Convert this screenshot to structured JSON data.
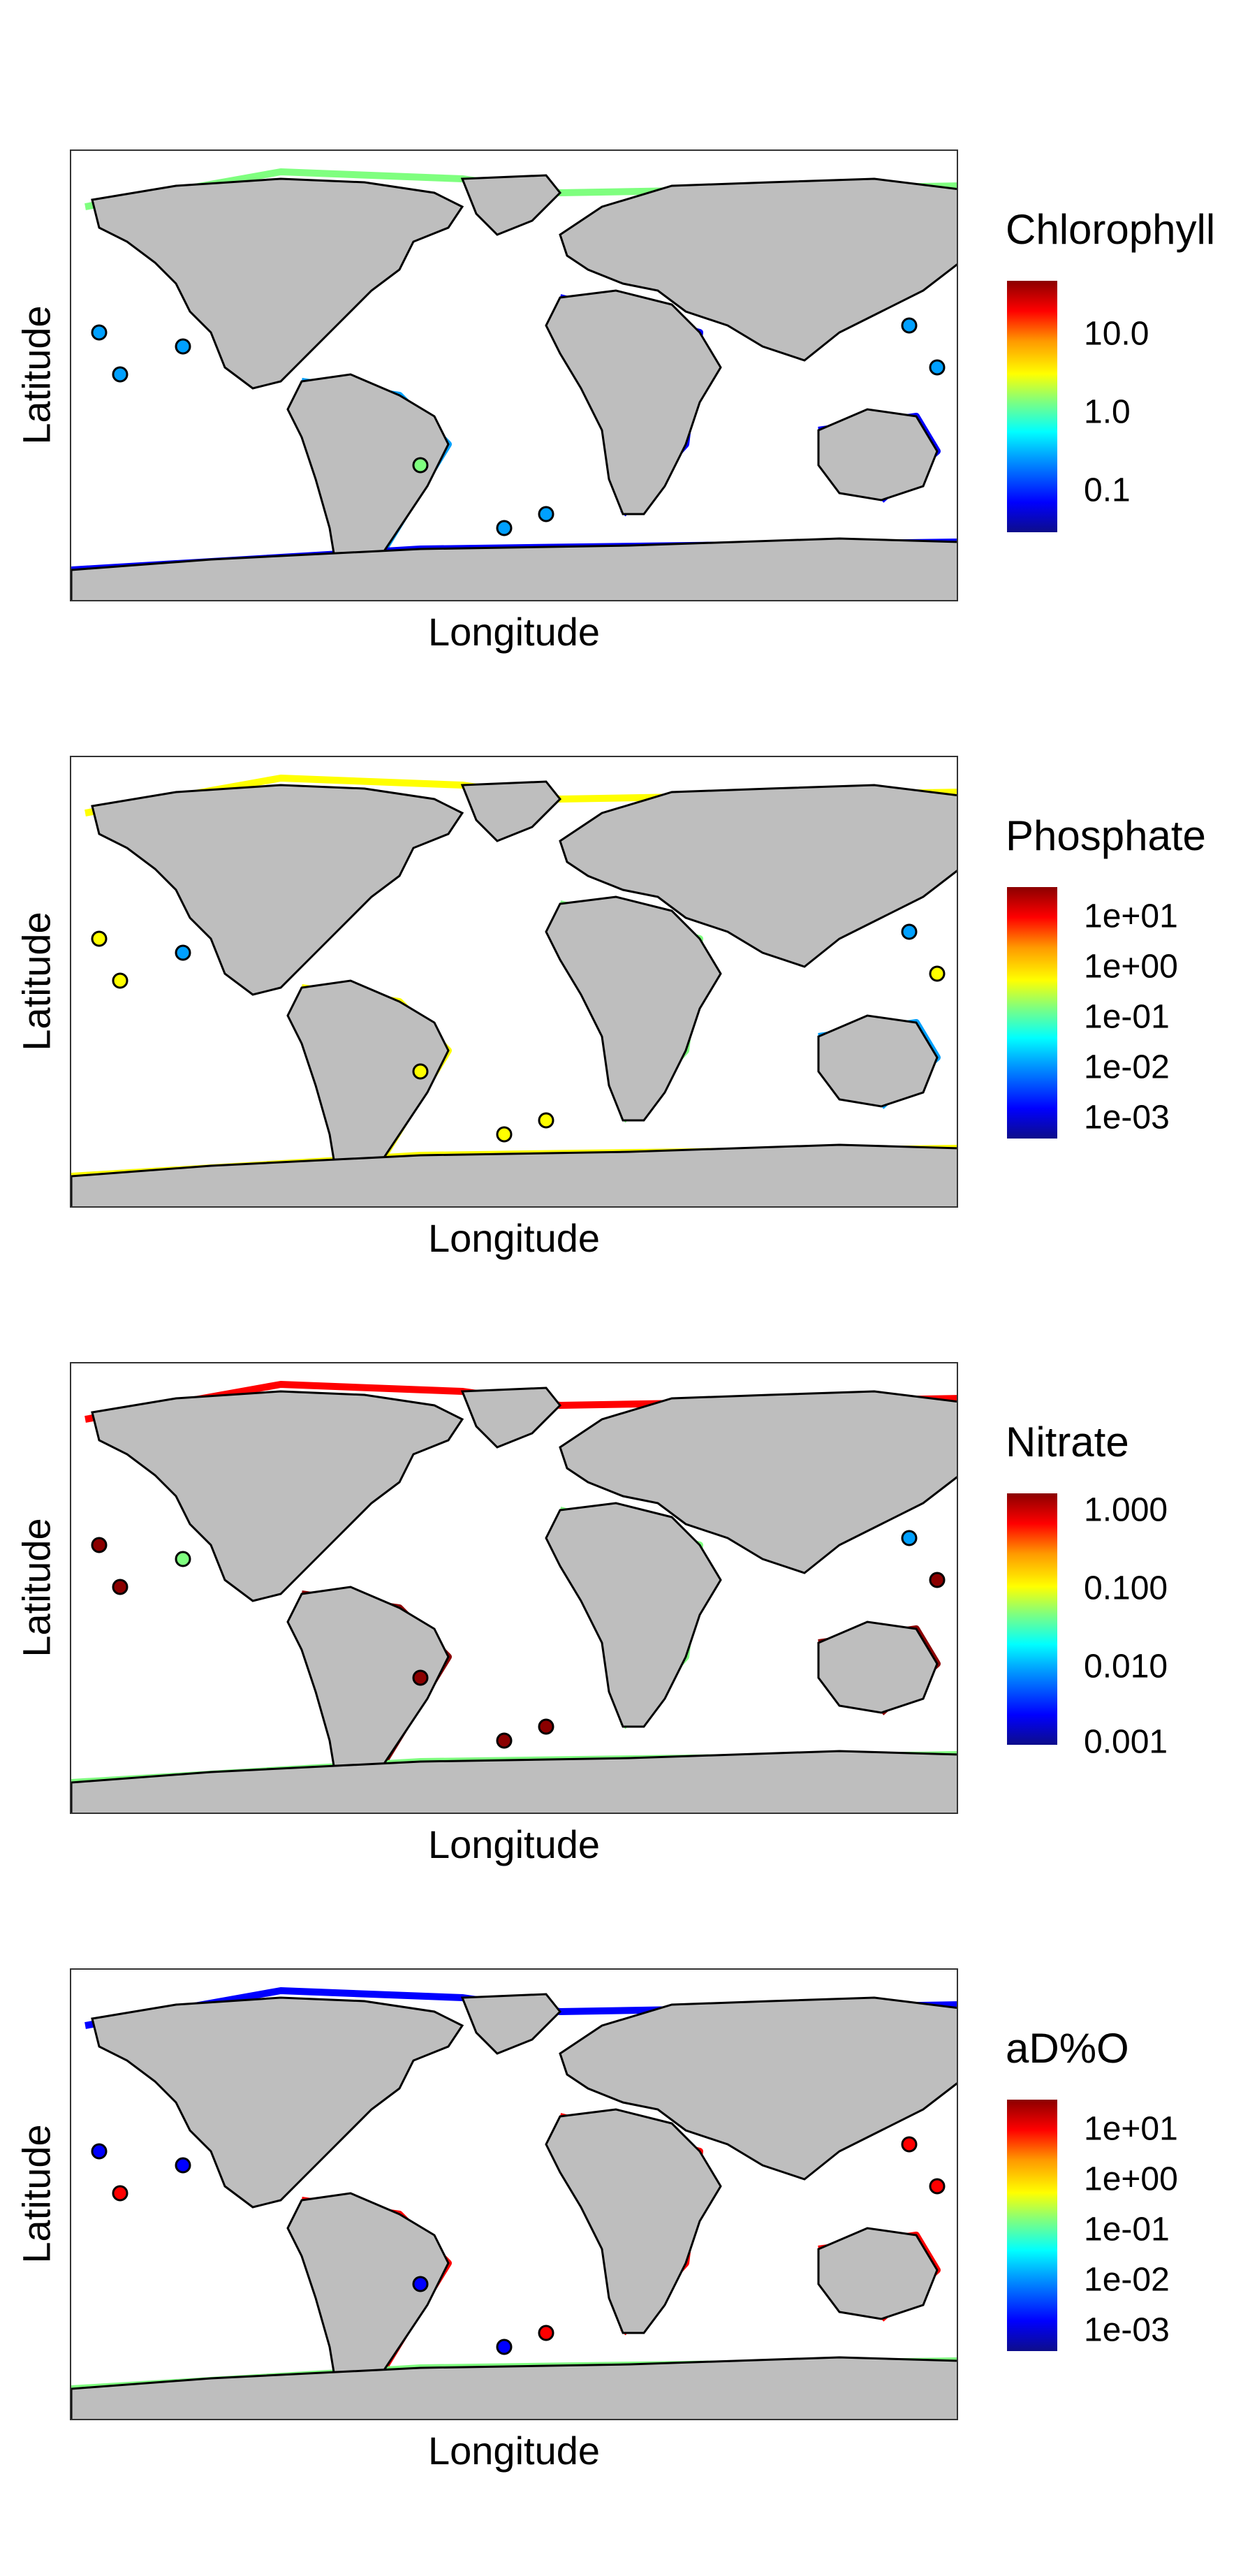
{
  "axes": {
    "xlabel": "Longitude",
    "ylabel": "Latitude"
  },
  "colors": {
    "land": "#bebebe",
    "outline": "#000000",
    "scale": [
      "#0d0d8a",
      "#0000ff",
      "#00a0ff",
      "#00ffff",
      "#7fff7f",
      "#ffff00",
      "#ff9900",
      "#ff0000",
      "#8b0000"
    ]
  },
  "panels": [
    {
      "title": "Chlorophyll",
      "ticks": [
        "10.0",
        "1.0",
        "0.1"
      ]
    },
    {
      "title": "Phosphate",
      "ticks": [
        "1e+01",
        "1e+00",
        "1e-01",
        "1e-02",
        "1e-03"
      ]
    },
    {
      "title": "Nitrate",
      "ticks": [
        "1.000",
        "0.100",
        "0.010",
        "0.001"
      ]
    },
    {
      "title": "aD%O",
      "ticks": [
        "1e+01",
        "1e+00",
        "1e-01",
        "1e-02",
        "1e-03"
      ]
    }
  ]
}
